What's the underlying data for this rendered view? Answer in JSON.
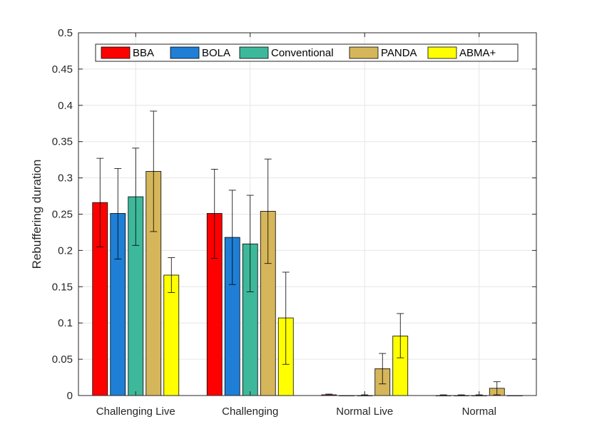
{
  "chart_data": {
    "type": "bar",
    "title": "",
    "xlabel": "",
    "ylabel": "Rebuffering duration",
    "ylim": [
      0,
      0.5
    ],
    "yticks": [
      0,
      0.05,
      0.1,
      0.15,
      0.2,
      0.25,
      0.3,
      0.35,
      0.4,
      0.45,
      0.5
    ],
    "ytick_labels": [
      "0",
      "0.05",
      "0.1",
      "0.15",
      "0.2",
      "0.25",
      "0.3",
      "0.35",
      "0.4",
      "0.45",
      "0.5"
    ],
    "grid": true,
    "legend_position": "top",
    "categories": [
      "Challenging Live",
      "Challenging",
      "Normal Live",
      "Normal"
    ],
    "series": [
      {
        "name": "BBA",
        "color": "#ff0000",
        "values": [
          0.266,
          0.251,
          0.001,
          0.0
        ],
        "err_low": [
          0.205,
          0.189,
          0.0,
          0.0
        ],
        "err_high": [
          0.327,
          0.312,
          0.002,
          0.001
        ]
      },
      {
        "name": "BOLA",
        "color": "#1f7fd6",
        "values": [
          0.251,
          0.218,
          0.0,
          0.0
        ],
        "err_low": [
          0.188,
          0.153,
          0.0,
          0.0
        ],
        "err_high": [
          0.313,
          0.283,
          0.0,
          0.001
        ]
      },
      {
        "name": "Conventional",
        "color": "#3eb89b",
        "values": [
          0.274,
          0.209,
          0.0,
          0.0
        ],
        "err_low": [
          0.207,
          0.143,
          0.0,
          0.0
        ],
        "err_high": [
          0.341,
          0.276,
          0.001,
          0.001
        ]
      },
      {
        "name": "PANDA",
        "color": "#d6b65a",
        "values": [
          0.309,
          0.254,
          0.037,
          0.01
        ],
        "err_low": [
          0.226,
          0.182,
          0.016,
          0.001
        ],
        "err_high": [
          0.392,
          0.326,
          0.058,
          0.019
        ]
      },
      {
        "name": "ABMA+",
        "color": "#ffff00",
        "values": [
          0.166,
          0.107,
          0.082,
          0.0
        ],
        "err_low": [
          0.142,
          0.043,
          0.052,
          0.0
        ],
        "err_high": [
          0.19,
          0.17,
          0.113,
          0.0
        ]
      }
    ]
  }
}
